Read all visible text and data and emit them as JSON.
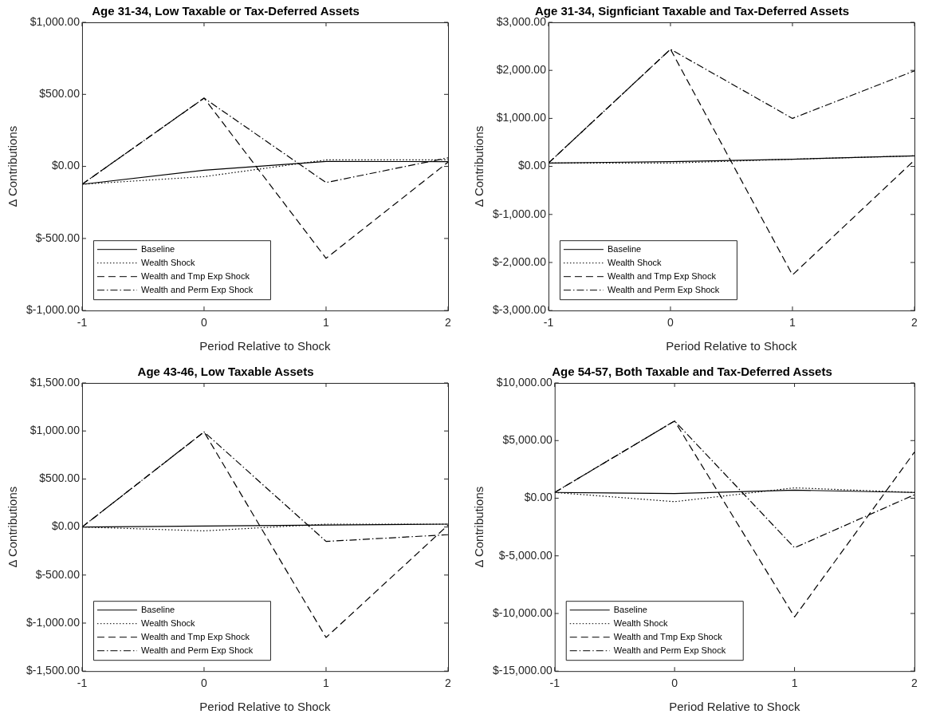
{
  "chart_data": [
    {
      "type": "line",
      "title": "Age 31-34, Low Taxable or Tax-Deferred Assets",
      "xlabel": "Period Relative to Shock",
      "ylabel": "Δ Contributions",
      "x": [
        -1,
        0,
        1,
        2
      ],
      "xlim": [
        -1,
        2
      ],
      "xticks": [
        -1,
        0,
        1,
        2
      ],
      "ylim": [
        -1000,
        1000
      ],
      "yticks": [
        {
          "value": -1000,
          "label": "$-1,000.00"
        },
        {
          "value": -500,
          "label": "$-500.00"
        },
        {
          "value": 0,
          "label": "$0.00"
        },
        {
          "value": 500,
          "label": "$500.00"
        },
        {
          "value": 1000,
          "label": "$1,000.00"
        }
      ],
      "legend": "bottom left",
      "series": [
        {
          "name": "Baseline",
          "color": "#000000",
          "line_style": "solid",
          "values": [
            -124,
            -26,
            35,
            33
          ]
        },
        {
          "name": "Wealth Shock",
          "color": "#000000",
          "line_style": "dotted",
          "values": [
            -124,
            -71,
            45,
            45
          ]
        },
        {
          "name": "Wealth and Tmp Exp Shock",
          "color": "#000000",
          "line_style": "dashed",
          "values": [
            -124,
            474,
            -638,
            30
          ]
        },
        {
          "name": "Wealth and Perm Exp Shock",
          "color": "#000000",
          "line_style": "dashdot",
          "values": [
            -124,
            474,
            -112,
            60
          ]
        }
      ]
    },
    {
      "type": "line",
      "title": "Age 31-34, Signficiant Taxable and Tax-Deferred Assets",
      "xlabel": "Period Relative to Shock",
      "ylabel": "Δ Contributions",
      "x": [
        -1,
        0,
        1,
        2
      ],
      "xlim": [
        -1,
        2
      ],
      "xticks": [
        -1,
        0,
        1,
        2
      ],
      "ylim": [
        -3000,
        3000
      ],
      "yticks": [
        {
          "value": -3000,
          "label": "$-3,000.00"
        },
        {
          "value": -2000,
          "label": "$-2,000.00"
        },
        {
          "value": -1000,
          "label": "$-1,000.00"
        },
        {
          "value": 0,
          "label": "$0.00"
        },
        {
          "value": 1000,
          "label": "$1,000.00"
        },
        {
          "value": 2000,
          "label": "$2,000.00"
        },
        {
          "value": 3000,
          "label": "$3,000.00"
        }
      ],
      "legend": "bottom left",
      "series": [
        {
          "name": "Baseline",
          "color": "#000000",
          "line_style": "solid",
          "values": [
            70,
            100,
            150,
            220
          ]
        },
        {
          "name": "Wealth Shock",
          "color": "#000000",
          "line_style": "dotted",
          "values": [
            70,
            70,
            150,
            220
          ]
        },
        {
          "name": "Wealth and Tmp Exp Shock",
          "color": "#000000",
          "line_style": "dashed",
          "values": [
            70,
            2440,
            -2260,
            130
          ]
        },
        {
          "name": "Wealth and Perm Exp Shock",
          "color": "#000000",
          "line_style": "dashdot",
          "values": [
            70,
            2440,
            1000,
            1990
          ]
        }
      ]
    },
    {
      "type": "line",
      "title": "Age 43-46, Low Taxable Assets",
      "xlabel": "Period Relative to Shock",
      "ylabel": "Δ Contributions",
      "x": [
        -1,
        0,
        1,
        2
      ],
      "xlim": [
        -1,
        2
      ],
      "xticks": [
        -1,
        0,
        1,
        2
      ],
      "ylim": [
        -1500,
        1500
      ],
      "yticks": [
        {
          "value": -1500,
          "label": "$-1,500.00"
        },
        {
          "value": -1000,
          "label": "$-1,000.00"
        },
        {
          "value": -500,
          "label": "$-500.00"
        },
        {
          "value": 0,
          "label": "$0.00"
        },
        {
          "value": 500,
          "label": "$500.00"
        },
        {
          "value": 1000,
          "label": "$1,000.00"
        },
        {
          "value": 1500,
          "label": "$1,500.00"
        }
      ],
      "legend": "bottom left",
      "series": [
        {
          "name": "Baseline",
          "color": "#000000",
          "line_style": "solid",
          "values": [
            0,
            10,
            20,
            30
          ]
        },
        {
          "name": "Wealth Shock",
          "color": "#000000",
          "line_style": "dotted",
          "values": [
            0,
            -40,
            30,
            30
          ]
        },
        {
          "name": "Wealth and Tmp Exp Shock",
          "color": "#000000",
          "line_style": "dashed",
          "values": [
            0,
            990,
            -1150,
            20
          ]
        },
        {
          "name": "Wealth and Perm Exp Shock",
          "color": "#000000",
          "line_style": "dashdot",
          "values": [
            0,
            990,
            -150,
            -80
          ]
        }
      ]
    },
    {
      "type": "line",
      "title": "Age 54-57, Both Taxable and Tax-Deferred Assets",
      "xlabel": "Period Relative to Shock",
      "ylabel": "Δ Contributions",
      "x": [
        -1,
        0,
        1,
        2
      ],
      "xlim": [
        -1,
        2
      ],
      "xticks": [
        -1,
        0,
        1,
        2
      ],
      "ylim": [
        -15000,
        10000
      ],
      "yticks": [
        {
          "value": -15000,
          "label": "$-15,000.00"
        },
        {
          "value": -10000,
          "label": "$-10,000.00"
        },
        {
          "value": -5000,
          "label": "$-5,000.00"
        },
        {
          "value": 0,
          "label": "$0.00"
        },
        {
          "value": 5000,
          "label": "$5,000.00"
        },
        {
          "value": 10000,
          "label": "$10,000.00"
        }
      ],
      "legend": "bottom left",
      "series": [
        {
          "name": "Baseline",
          "color": "#000000",
          "line_style": "solid",
          "values": [
            500,
            400,
            700,
            500
          ]
        },
        {
          "name": "Wealth Shock",
          "color": "#000000",
          "line_style": "dotted",
          "values": [
            500,
            -300,
            900,
            500
          ]
        },
        {
          "name": "Wealth and Tmp Exp Shock",
          "color": "#000000",
          "line_style": "dashed",
          "values": [
            500,
            6700,
            -10300,
            4000
          ]
        },
        {
          "name": "Wealth and Perm Exp Shock",
          "color": "#000000",
          "line_style": "dashdot",
          "values": [
            500,
            6700,
            -4300,
            300
          ]
        }
      ]
    }
  ]
}
